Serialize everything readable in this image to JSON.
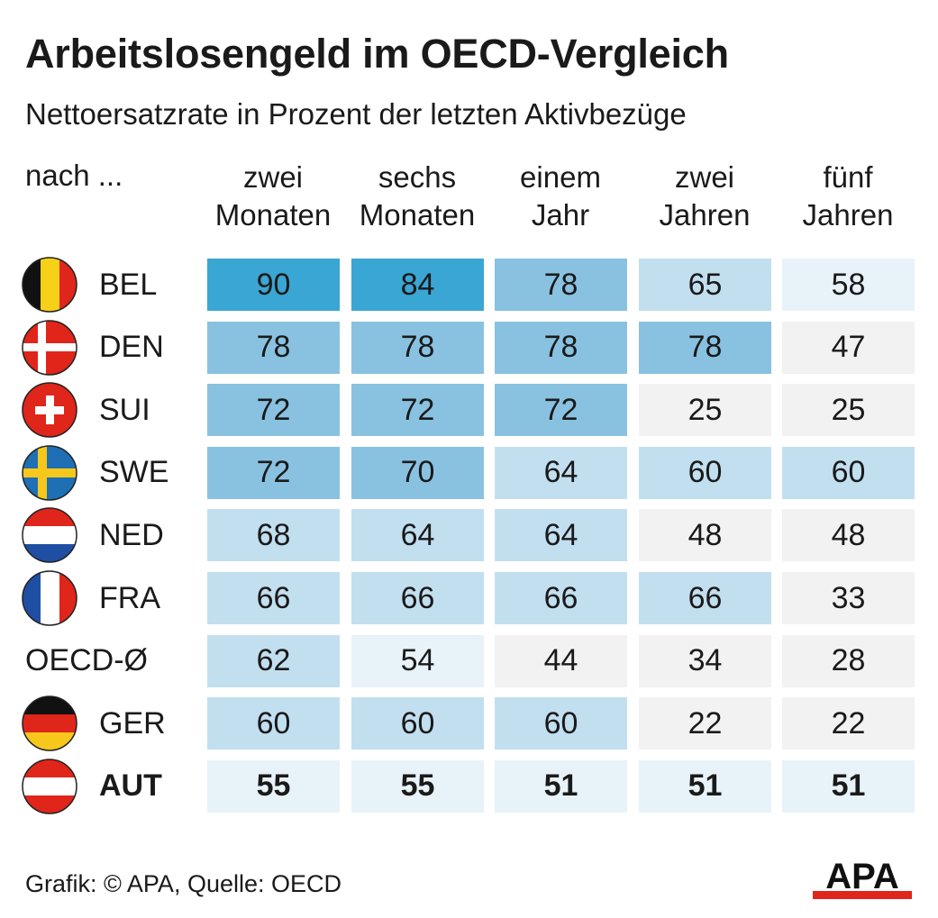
{
  "title": "Arbeitslosengeld im OECD-Vergleich",
  "subtitle": "Nettoersatzrate in Prozent der letzten Aktivbezüge",
  "row_header": "nach ...",
  "footer": "Grafik: © APA, Quelle: OECD",
  "logo_text": "APA",
  "colors": {
    "scale": [
      "#f2f2f2",
      "#e8f2f9",
      "#c2dff0",
      "#89c2e0",
      "#3aa6d4"
    ],
    "accent_red": "#e0251b"
  },
  "chart_data": {
    "type": "table",
    "title": "Arbeitslosengeld im OECD-Vergleich",
    "subtitle": "Nettoersatzrate in Prozent der letzten Aktivbezüge",
    "columns": [
      [
        "zwei",
        "Monaten"
      ],
      [
        "sechs",
        "Monaten"
      ],
      [
        "einem",
        "Jahr"
      ],
      [
        "zwei",
        "Jahren"
      ],
      [
        "fünf",
        "Jahren"
      ]
    ],
    "rows": [
      {
        "label": "BEL",
        "flag": "belgium-flag-icon",
        "values": [
          90,
          84,
          78,
          65,
          58
        ],
        "shades": [
          4,
          4,
          3,
          2,
          1
        ]
      },
      {
        "label": "DEN",
        "flag": "denmark-flag-icon",
        "values": [
          78,
          78,
          78,
          78,
          47
        ],
        "shades": [
          3,
          3,
          3,
          3,
          0
        ]
      },
      {
        "label": "SUI",
        "flag": "switzerland-flag-icon",
        "values": [
          72,
          72,
          72,
          25,
          25
        ],
        "shades": [
          3,
          3,
          3,
          0,
          0
        ]
      },
      {
        "label": "SWE",
        "flag": "sweden-flag-icon",
        "values": [
          72,
          70,
          64,
          60,
          60
        ],
        "shades": [
          3,
          3,
          2,
          2,
          2
        ]
      },
      {
        "label": "NED",
        "flag": "netherlands-flag-icon",
        "values": [
          68,
          64,
          64,
          48,
          48
        ],
        "shades": [
          2,
          2,
          2,
          0,
          0
        ]
      },
      {
        "label": "FRA",
        "flag": "france-flag-icon",
        "values": [
          66,
          66,
          66,
          66,
          33
        ],
        "shades": [
          2,
          2,
          2,
          2,
          0
        ]
      },
      {
        "label": "OECD-Ø",
        "flag": null,
        "values": [
          62,
          54,
          44,
          34,
          28
        ],
        "shades": [
          2,
          1,
          0,
          0,
          0
        ]
      },
      {
        "label": "GER",
        "flag": "germany-flag-icon",
        "values": [
          60,
          60,
          60,
          22,
          22
        ],
        "shades": [
          2,
          2,
          2,
          0,
          0
        ]
      },
      {
        "label": "AUT",
        "flag": "austria-flag-icon",
        "values": [
          55,
          55,
          51,
          51,
          51
        ],
        "shades": [
          1,
          1,
          1,
          1,
          1
        ],
        "bold": true
      }
    ]
  }
}
